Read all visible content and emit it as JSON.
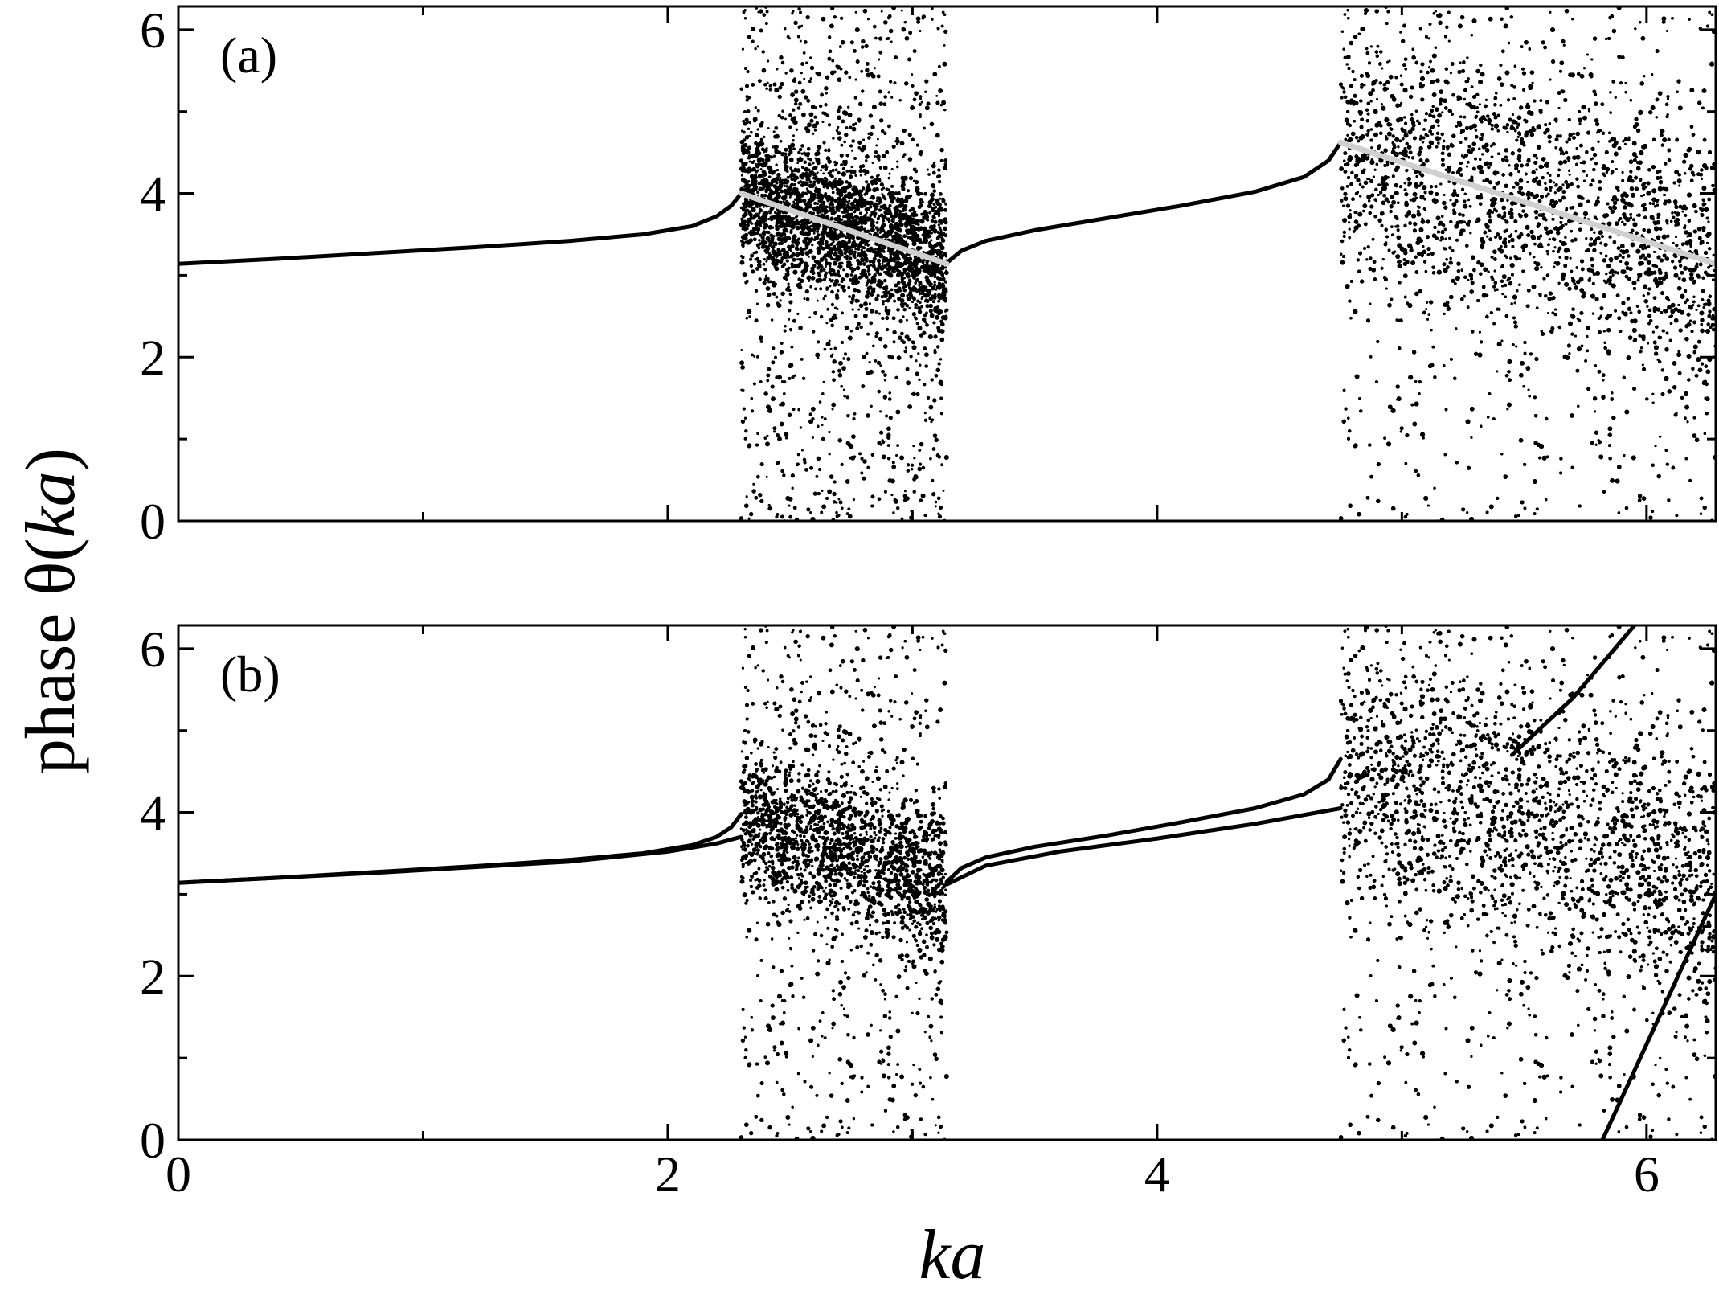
{
  "chart_data": [
    {
      "type": "scatter",
      "panel_label": "(a)",
      "xlabel_italic": "ka",
      "ylabel_prefix": "phase θ(",
      "ylabel_italic": "ka",
      "ylabel_suffix": ")",
      "xlim": [
        0,
        6.283
      ],
      "ylim": [
        0,
        6.283
      ],
      "xticks": [
        0,
        2,
        4,
        6
      ],
      "yticks": [
        0,
        2,
        4,
        6
      ],
      "grid": false,
      "series": [
        {
          "kind": "curve",
          "color": "#000000",
          "x": [
            0.0,
            0.4,
            0.8,
            1.2,
            1.6,
            1.9,
            2.1,
            2.2,
            2.26,
            2.3
          ],
          "y": [
            3.14,
            3.2,
            3.27,
            3.34,
            3.42,
            3.5,
            3.6,
            3.72,
            3.85,
            4.0
          ]
        },
        {
          "kind": "curve",
          "color": "#000000",
          "x": [
            3.14,
            3.2,
            3.3,
            3.5,
            3.8,
            4.1,
            4.4,
            4.6,
            4.7,
            4.75
          ],
          "y": [
            3.15,
            3.3,
            3.42,
            3.55,
            3.7,
            3.85,
            4.02,
            4.2,
            4.4,
            4.62
          ]
        },
        {
          "kind": "scatter_band",
          "color": "#000000",
          "x_range": [
            2.3,
            3.14
          ],
          "center_start": 4.0,
          "center_end": 3.14,
          "spread": 0.45,
          "tail": 6.28
        },
        {
          "kind": "scatter_band",
          "color": "#000000",
          "x_range": [
            4.75,
            6.283
          ],
          "center_start": 4.62,
          "center_end": 3.14,
          "spread": 0.8,
          "tail": 6.28
        },
        {
          "kind": "line",
          "color": "#d0d0d0",
          "x": [
            2.3,
            3.14
          ],
          "y": [
            4.0,
            3.14
          ]
        },
        {
          "kind": "line",
          "color": "#d0d0d0",
          "x": [
            4.75,
            6.283
          ],
          "y": [
            4.62,
            3.14
          ]
        }
      ]
    },
    {
      "type": "scatter",
      "panel_label": "(b)",
      "xlabel_italic": "ka",
      "xlim": [
        0,
        6.283
      ],
      "ylim": [
        0,
        6.283
      ],
      "xticks": [
        0,
        2,
        4,
        6
      ],
      "yticks": [
        0,
        2,
        4,
        6
      ],
      "grid": false,
      "series": [
        {
          "kind": "curve",
          "color": "#000000",
          "x": [
            0.0,
            0.4,
            0.8,
            1.2,
            1.6,
            1.9,
            2.1,
            2.2,
            2.26,
            2.3
          ],
          "y": [
            3.14,
            3.2,
            3.27,
            3.34,
            3.42,
            3.5,
            3.6,
            3.7,
            3.82,
            3.98
          ]
        },
        {
          "kind": "curve",
          "color": "#000000",
          "x": [
            0.0,
            0.8,
            1.6,
            2.0,
            2.2,
            2.3
          ],
          "y": [
            3.14,
            3.26,
            3.4,
            3.52,
            3.62,
            3.7
          ]
        },
        {
          "kind": "curve",
          "color": "#000000",
          "x": [
            3.14,
            3.2,
            3.3,
            3.5,
            3.8,
            4.1,
            4.4,
            4.6,
            4.7,
            4.75
          ],
          "y": [
            3.15,
            3.32,
            3.45,
            3.58,
            3.72,
            3.88,
            4.05,
            4.22,
            4.4,
            4.65
          ]
        },
        {
          "kind": "curve",
          "color": "#000000",
          "x": [
            3.14,
            3.3,
            3.6,
            4.0,
            4.4,
            4.75
          ],
          "y": [
            3.12,
            3.35,
            3.52,
            3.68,
            3.86,
            4.05
          ]
        },
        {
          "kind": "scatter_band",
          "color": "#000000",
          "x_range": [
            2.3,
            3.14
          ],
          "center_start": 3.98,
          "center_end": 3.1,
          "spread": 0.45,
          "tail": 6.28
        },
        {
          "kind": "scatter_band",
          "color": "#000000",
          "x_range": [
            4.75,
            6.283
          ],
          "center_start": 4.65,
          "center_end": 3.1,
          "spread": 0.8,
          "tail": 6.28
        },
        {
          "kind": "line",
          "color": "#000000",
          "x": [
            5.45,
            5.7,
            5.95
          ],
          "y": [
            4.7,
            5.4,
            6.28
          ]
        },
        {
          "kind": "line",
          "color": "#000000",
          "x": [
            5.82,
            6.283
          ],
          "y": [
            0.0,
            3.0
          ]
        }
      ]
    }
  ]
}
